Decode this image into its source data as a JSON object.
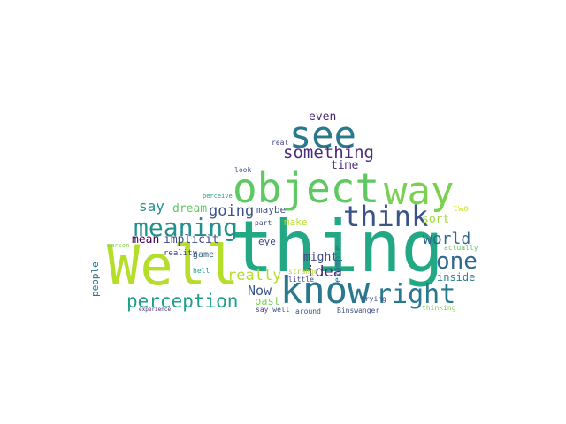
{
  "words": [
    {
      "text": "thing",
      "color": "#22a884"
    },
    {
      "text": "Well",
      "color": "#b5de2b"
    },
    {
      "text": "object",
      "color": "#5ec962"
    },
    {
      "text": "know",
      "color": "#2a788e"
    },
    {
      "text": "see",
      "color": "#2a788e"
    },
    {
      "text": "way",
      "color": "#7ad151"
    },
    {
      "text": "think",
      "color": "#3b528b"
    },
    {
      "text": "meaning",
      "color": "#21918c"
    },
    {
      "text": "right",
      "color": "#2a788e"
    },
    {
      "text": "one",
      "color": "#31688e"
    },
    {
      "text": "perception",
      "color": "#1f9e89"
    },
    {
      "text": "something",
      "color": "#472d7b"
    },
    {
      "text": "world",
      "color": "#31688e"
    },
    {
      "text": "going",
      "color": "#3b528b"
    },
    {
      "text": "really",
      "color": "#b5de2b"
    },
    {
      "text": "idea",
      "color": "#482878"
    },
    {
      "text": "say",
      "color": "#21918c"
    },
    {
      "text": "Now",
      "color": "#39568c"
    },
    {
      "text": "mean",
      "color": "#440154"
    },
    {
      "text": "implicit",
      "color": "#3e4989"
    },
    {
      "text": "even",
      "color": "#482878"
    },
    {
      "text": "time",
      "color": "#472d7b"
    },
    {
      "text": "dream",
      "color": "#5ec962"
    },
    {
      "text": "might",
      "color": "#3e4989"
    },
    {
      "text": "sort",
      "color": "#a0da39"
    },
    {
      "text": "inside",
      "color": "#287c8e"
    },
    {
      "text": "past",
      "color": "#7ad151"
    },
    {
      "text": "make",
      "color": "#b5de2b"
    },
    {
      "text": "maybe",
      "color": "#3b528b"
    },
    {
      "text": "people",
      "color": "#2c728e"
    },
    {
      "text": "eye",
      "color": "#3e4989"
    },
    {
      "text": "two",
      "color": "#d2e21b"
    },
    {
      "text": "example",
      "color": "#2c728e"
    },
    {
      "text": "game",
      "color": "#31688e"
    },
    {
      "text": "reality",
      "color": "#414487"
    },
    {
      "text": "actually",
      "color": "#5ec962"
    },
    {
      "text": "look",
      "color": "#3b528b"
    },
    {
      "text": "real",
      "color": "#414487"
    },
    {
      "text": "perceive",
      "color": "#1fa187"
    },
    {
      "text": "part",
      "color": "#3e4989"
    },
    {
      "text": "strange",
      "color": "#b5de2b"
    },
    {
      "text": "little",
      "color": "#3e4989"
    },
    {
      "text": "hell",
      "color": "#1f9e89"
    },
    {
      "text": "trying",
      "color": "#414487"
    },
    {
      "text": "person",
      "color": "#84d44b"
    },
    {
      "text": "say well",
      "color": "#3e4989"
    },
    {
      "text": "around",
      "color": "#3b528b"
    },
    {
      "text": "Binswanger",
      "color": "#3b528b"
    },
    {
      "text": "thinking",
      "color": "#7ad151"
    },
    {
      "text": "experience",
      "color": "#482878"
    }
  ]
}
